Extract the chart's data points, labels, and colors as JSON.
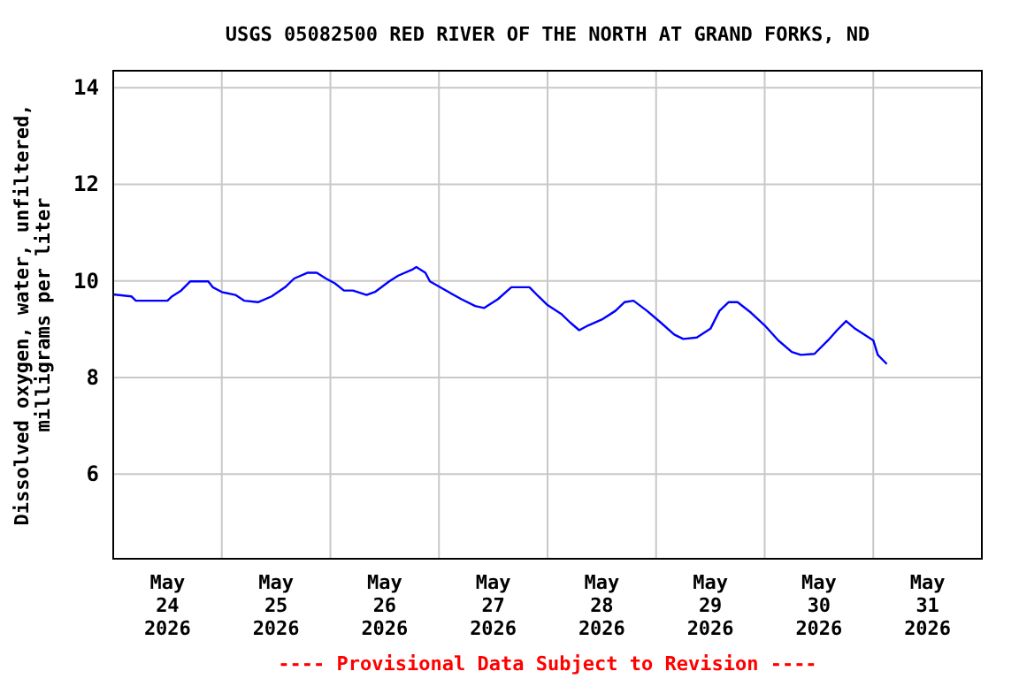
{
  "chart_data": {
    "type": "line",
    "title": "USGS 05082500 RED RIVER OF THE NORTH AT GRAND FORKS, ND",
    "ylabel": "Dissolved oxygen, water, unfiltered,\nmilligrams per liter",
    "annotations": [
      "---- Provisional Data Subject to Revision ----"
    ],
    "xlim": [
      "2026-05-24T00:00",
      "2026-06-01T00:00"
    ],
    "xticks": [
      {
        "value": "2026-05-24T12:00",
        "label": "May\n24\n2026"
      },
      {
        "value": "2026-05-25T00:00",
        "label": null
      },
      {
        "value": "2026-05-25T12:00",
        "label": "May\n25\n2026"
      },
      {
        "value": "2026-05-26T00:00",
        "label": null
      },
      {
        "value": "2026-05-26T12:00",
        "label": "May\n26\n2026"
      },
      {
        "value": "2026-05-27T00:00",
        "label": null
      },
      {
        "value": "2026-05-27T12:00",
        "label": "May\n27\n2026"
      },
      {
        "value": "2026-05-28T00:00",
        "label": null
      },
      {
        "value": "2026-05-28T12:00",
        "label": "May\n28\n2026"
      },
      {
        "value": "2026-05-29T00:00",
        "label": null
      },
      {
        "value": "2026-05-29T12:00",
        "label": "May\n29\n2026"
      },
      {
        "value": "2026-05-30T00:00",
        "label": null
      },
      {
        "value": "2026-05-30T12:00",
        "label": "May\n30\n2026"
      },
      {
        "value": "2026-05-31T00:00",
        "label": null
      },
      {
        "value": "2026-05-31T12:00",
        "label": "May\n31\n2026"
      }
    ],
    "ylim": [
      4.25,
      14.35
    ],
    "yticks": [
      6,
      8,
      10,
      12,
      14
    ],
    "grid": true,
    "x": [
      "2026-05-24T00:00",
      "2026-05-24T04:00",
      "2026-05-24T05:00",
      "2026-05-24T08:00",
      "2026-05-24T12:00",
      "2026-05-24T13:00",
      "2026-05-24T15:00",
      "2026-05-24T17:00",
      "2026-05-24T21:00",
      "2026-05-24T22:00",
      "2026-05-25T00:00",
      "2026-05-25T03:00",
      "2026-05-25T05:00",
      "2026-05-25T08:00",
      "2026-05-25T11:00",
      "2026-05-25T14:00",
      "2026-05-25T16:00",
      "2026-05-25T19:00",
      "2026-05-25T21:00",
      "2026-05-25T23:00",
      "2026-05-26T01:00",
      "2026-05-26T03:00",
      "2026-05-26T05:00",
      "2026-05-26T08:00",
      "2026-05-26T10:00",
      "2026-05-26T13:00",
      "2026-05-26T15:00",
      "2026-05-26T18:00",
      "2026-05-26T19:00",
      "2026-05-26T21:00",
      "2026-05-26T22:00",
      "2026-05-27T01:00",
      "2026-05-27T05:00",
      "2026-05-27T08:00",
      "2026-05-27T10:00",
      "2026-05-27T13:00",
      "2026-05-27T16:00",
      "2026-05-27T20:00",
      "2026-05-27T22:00",
      "2026-05-28T00:00",
      "2026-05-28T03:00",
      "2026-05-28T05:00",
      "2026-05-28T07:00",
      "2026-05-28T09:00",
      "2026-05-28T12:00",
      "2026-05-28T15:00",
      "2026-05-28T17:00",
      "2026-05-28T19:00",
      "2026-05-28T22:00",
      "2026-05-29T01:00",
      "2026-05-29T04:00",
      "2026-05-29T06:00",
      "2026-05-29T09:00",
      "2026-05-29T12:00",
      "2026-05-29T14:00",
      "2026-05-29T16:00",
      "2026-05-29T18:00",
      "2026-05-29T21:00",
      "2026-05-30T00:00",
      "2026-05-30T03:00",
      "2026-05-30T06:00",
      "2026-05-30T08:00",
      "2026-05-30T11:00",
      "2026-05-30T14:00",
      "2026-05-30T16:00",
      "2026-05-30T18:00",
      "2026-05-30T20:00",
      "2026-05-31T00:00",
      "2026-05-31T01:00",
      "2026-05-31T03:00"
    ],
    "series": [
      {
        "color": "#0000ff",
        "values": [
          9.72,
          9.68,
          9.59,
          9.59,
          9.59,
          9.68,
          9.8,
          9.99,
          9.99,
          9.87,
          9.77,
          9.71,
          9.59,
          9.56,
          9.68,
          9.87,
          10.05,
          10.17,
          10.17,
          10.05,
          9.95,
          9.8,
          9.8,
          9.71,
          9.78,
          9.99,
          10.11,
          10.23,
          10.29,
          10.17,
          9.99,
          9.83,
          9.62,
          9.48,
          9.44,
          9.62,
          9.87,
          9.87,
          9.68,
          9.5,
          9.32,
          9.14,
          8.98,
          9.08,
          9.2,
          9.38,
          9.56,
          9.59,
          9.38,
          9.14,
          8.89,
          8.8,
          8.83,
          9.01,
          9.38,
          9.56,
          9.56,
          9.34,
          9.08,
          8.77,
          8.53,
          8.47,
          8.49,
          8.77,
          8.98,
          9.17,
          9.01,
          8.77,
          8.47,
          8.28
        ]
      }
    ]
  }
}
